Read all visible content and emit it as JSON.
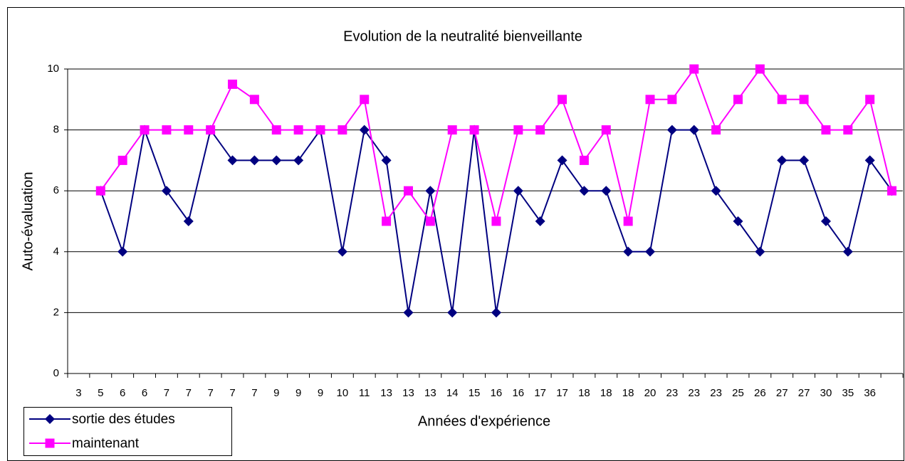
{
  "chart_data": {
    "type": "line",
    "title": "Evolution de la neutralité bienveillante",
    "x_label": "Années d'expérience",
    "y_label": "Auto-évaluation",
    "categories": [
      "3",
      "5",
      "6",
      "6",
      "7",
      "7",
      "7",
      "7",
      "7",
      "9",
      "9",
      "9",
      "10",
      "11",
      "13",
      "13",
      "13",
      "14",
      "15",
      "16",
      "16",
      "17",
      "17",
      "18",
      "18",
      "18",
      "20",
      "23",
      "23",
      "23",
      "25",
      "26",
      "27",
      "27",
      "30",
      "35",
      "36",
      null
    ],
    "series": [
      {
        "name": "sortie des études",
        "color": "#000080",
        "marker": "diamond",
        "values": [
          null,
          6,
          4,
          8,
          6,
          5,
          8,
          7,
          7,
          7,
          7,
          8,
          4,
          8,
          7,
          2,
          6,
          2,
          8,
          2,
          6,
          5,
          7,
          6,
          6,
          4,
          4,
          8,
          8,
          6,
          5,
          4,
          7,
          7,
          5,
          4,
          7,
          6
        ]
      },
      {
        "name": "maintenant",
        "color": "#ff00ff",
        "marker": "square",
        "values": [
          null,
          6,
          7,
          8,
          8,
          8,
          8,
          9.5,
          9,
          8,
          8,
          8,
          8,
          9,
          5,
          6,
          5,
          8,
          8,
          5,
          8,
          8,
          9,
          7,
          8,
          5,
          9,
          9,
          10,
          8,
          9,
          10,
          9,
          9,
          8,
          8,
          9,
          6
        ]
      }
    ],
    "ylim": [
      0,
      10
    ],
    "yticks": [
      0,
      2,
      4,
      6,
      8,
      10
    ],
    "grid": true,
    "legend": "bottom-left"
  }
}
